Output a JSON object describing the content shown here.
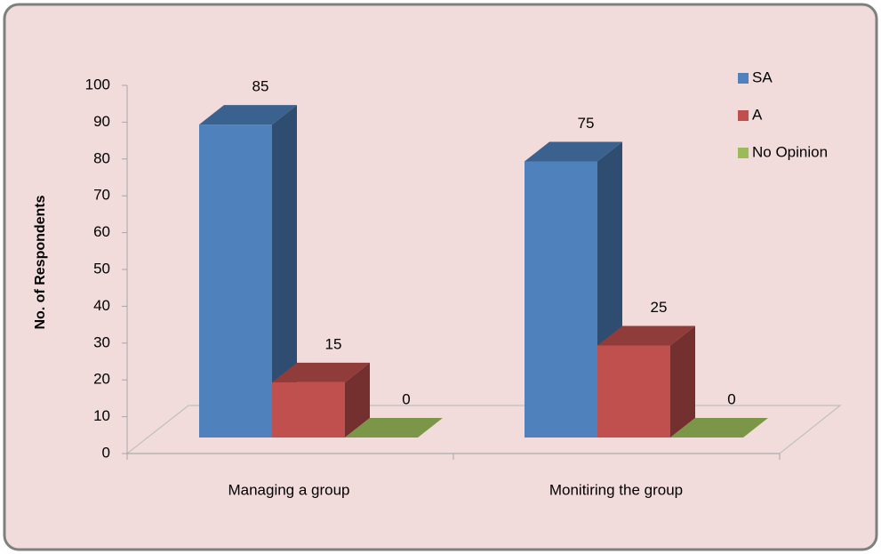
{
  "chart_data": {
    "type": "bar3d",
    "y_label": "No. of Respondents",
    "categories": [
      "Managing  a group",
      "Monitiring the group"
    ],
    "series": [
      {
        "name": "SA",
        "color": "#4f81bd",
        "values": [
          85,
          75
        ]
      },
      {
        "name": "A",
        "color": "#c0504d",
        "values": [
          15,
          25
        ]
      },
      {
        "name": "No Opinion",
        "color": "#9bbb59",
        "values": [
          0,
          0
        ]
      }
    ],
    "ylim": [
      0,
      100
    ],
    "yticks": [
      0,
      10,
      20,
      30,
      40,
      50,
      60,
      70,
      80,
      90,
      100
    ],
    "legend": "top-right"
  }
}
